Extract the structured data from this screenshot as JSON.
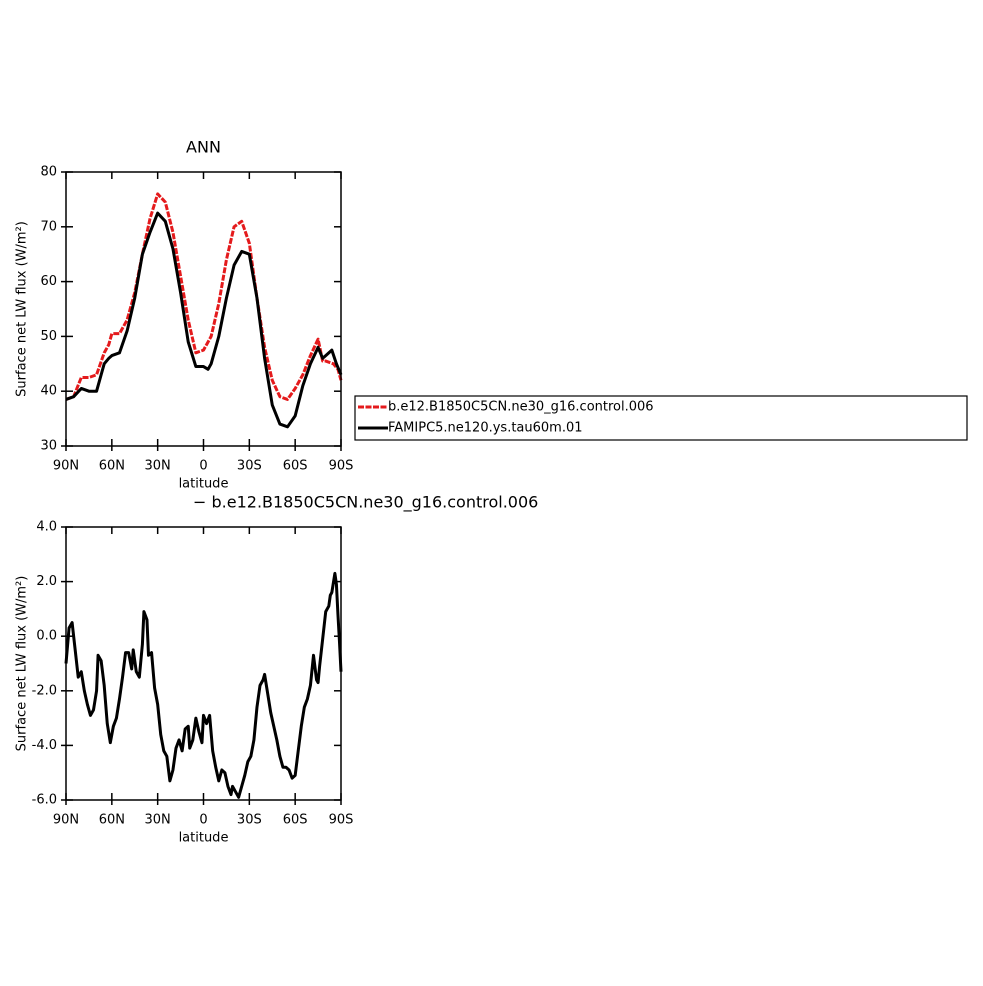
{
  "chart_data": [
    {
      "type": "line",
      "title": "ANN",
      "xlabel": "latitude",
      "ylabel": "Surface net LW flux (W/m²)",
      "xlim": [
        90,
        -90
      ],
      "xticks": [
        {
          "value": 90,
          "label": "90N"
        },
        {
          "value": 60,
          "label": "60N"
        },
        {
          "value": 30,
          "label": "30N"
        },
        0,
        {
          "value": -30,
          "label": "30S"
        },
        {
          "value": -60,
          "label": "60S"
        },
        {
          "value": -90,
          "label": "90S"
        }
      ],
      "ylim": [
        30,
        80
      ],
      "yticks": [
        30,
        40,
        50,
        60,
        70,
        80
      ],
      "legend": "right",
      "series": [
        {
          "name": "b.e12.B1850C5CN.ne30_g16.control.006",
          "color": "#e41a1c",
          "style": "dashed",
          "x": [
            90,
            85,
            80,
            75,
            70,
            65,
            62,
            60,
            55,
            50,
            45,
            40,
            35,
            30,
            25,
            20,
            15,
            10,
            5,
            0,
            -5,
            -10,
            -15,
            -20,
            -25,
            -30,
            -35,
            -40,
            -45,
            -50,
            -55,
            -60,
            -65,
            -70,
            -75,
            -78,
            -80,
            -85,
            -88,
            -90
          ],
          "values": [
            38.5,
            39,
            42.5,
            42.5,
            43,
            47,
            48.5,
            50.5,
            50.5,
            53,
            58,
            65,
            71.5,
            76,
            74.5,
            69,
            61,
            53,
            47,
            47.5,
            50,
            56,
            64,
            70,
            71,
            67,
            57,
            48,
            42,
            39,
            38.5,
            40.5,
            43,
            46.5,
            49.5,
            45.5,
            45.5,
            45,
            44,
            42
          ]
        },
        {
          "name": "FAMIPC5.ne120.ys.tau60m.01",
          "color": "#000000",
          "style": "solid",
          "x": [
            90,
            85,
            80,
            75,
            70,
            67,
            65,
            62,
            60,
            55,
            50,
            45,
            40,
            35,
            30,
            25,
            20,
            15,
            10,
            5,
            0,
            -3,
            -5,
            -10,
            -15,
            -20,
            -25,
            -30,
            -35,
            -40,
            -45,
            -50,
            -55,
            -60,
            -65,
            -70,
            -75,
            -78,
            -80,
            -84,
            -87,
            -90
          ],
          "values": [
            38.5,
            39,
            40.5,
            40,
            40,
            43,
            45,
            46,
            46.5,
            47,
            51,
            57,
            65,
            69,
            72.5,
            71,
            66,
            58,
            49,
            44.5,
            44.5,
            44,
            45,
            50,
            57,
            63,
            65.5,
            65,
            57,
            46,
            37.5,
            34,
            33.5,
            35.5,
            41,
            45,
            48,
            46,
            46.5,
            47.5,
            45,
            43
          ]
        }
      ]
    },
    {
      "type": "line",
      "title": "− b.e12.B1850C5CN.ne30_g16.control.006",
      "xlabel": "latitude",
      "ylabel": "Surface net LW flux (W/m²)",
      "xlim": [
        90,
        -90
      ],
      "xticks": [
        {
          "value": 90,
          "label": "90N"
        },
        {
          "value": 60,
          "label": "60N"
        },
        {
          "value": 30,
          "label": "30N"
        },
        0,
        {
          "value": -30,
          "label": "30S"
        },
        {
          "value": -60,
          "label": "60S"
        },
        {
          "value": -90,
          "label": "90S"
        }
      ],
      "ylim": [
        -6,
        4
      ],
      "yticks": [
        {
          "value": -6,
          "label": "-6.0"
        },
        {
          "value": -4,
          "label": "-4.0"
        },
        {
          "value": -2,
          "label": "-2.0"
        },
        {
          "value": 0,
          "label": "0.0"
        },
        {
          "value": 2,
          "label": "2.0"
        },
        {
          "value": 4,
          "label": "4.0"
        }
      ],
      "series": [
        {
          "color": "#000000",
          "style": "solid",
          "x": [
            90,
            88,
            86,
            84,
            82,
            80,
            78,
            76,
            74,
            72,
            70,
            69,
            67,
            65,
            63,
            61,
            59,
            57,
            55,
            53,
            51,
            49,
            47,
            46,
            44,
            42,
            40,
            39,
            37,
            36,
            34,
            32,
            30,
            28,
            26,
            24,
            22,
            20,
            18,
            16,
            14,
            12,
            10,
            9,
            7,
            5,
            3,
            1,
            0,
            -2,
            -4,
            -6,
            -8,
            -10,
            -12,
            -14,
            -16,
            -18,
            -19,
            -21,
            -23,
            -25,
            -27,
            -29,
            -31,
            -33,
            -35,
            -37,
            -39,
            -40,
            -42,
            -44,
            -46,
            -48,
            -50,
            -52,
            -54,
            -56,
            -58,
            -60,
            -62,
            -64,
            -66,
            -68,
            -70,
            -72,
            -74,
            -75,
            -76,
            -78,
            -80,
            -82,
            -83,
            -84,
            -86,
            -87,
            -88,
            -89,
            -90
          ],
          "values": [
            -1,
            0.3,
            0.5,
            -0.5,
            -1.5,
            -1.3,
            -2,
            -2.5,
            -2.9,
            -2.7,
            -2,
            -0.7,
            -0.9,
            -1.8,
            -3.2,
            -3.9,
            -3.3,
            -3,
            -2.3,
            -1.5,
            -0.6,
            -0.6,
            -1.2,
            -0.5,
            -1.3,
            -1.5,
            -0.3,
            0.9,
            0.6,
            -0.7,
            -0.6,
            -1.9,
            -2.5,
            -3.6,
            -4.2,
            -4.4,
            -5.3,
            -4.9,
            -4.1,
            -3.8,
            -4.2,
            -3.4,
            -3.3,
            -4.1,
            -3.8,
            -3,
            -3.5,
            -3.9,
            -2.9,
            -3.2,
            -2.9,
            -4.2,
            -4.8,
            -5.3,
            -4.9,
            -5,
            -5.5,
            -5.8,
            -5.5,
            -5.7,
            -5.9,
            -5.5,
            -5.1,
            -4.6,
            -4.4,
            -3.8,
            -2.6,
            -1.8,
            -1.6,
            -1.4,
            -2.1,
            -2.8,
            -3.3,
            -3.8,
            -4.4,
            -4.8,
            -4.8,
            -4.9,
            -5.2,
            -5.1,
            -4.2,
            -3.3,
            -2.6,
            -2.3,
            -1.8,
            -0.7,
            -1.6,
            -1.7,
            -1.1,
            -0.1,
            0.9,
            1.1,
            1.5,
            1.6,
            2.3,
            1.9,
            0.8,
            -0.2,
            -1.3
          ]
        }
      ]
    }
  ]
}
